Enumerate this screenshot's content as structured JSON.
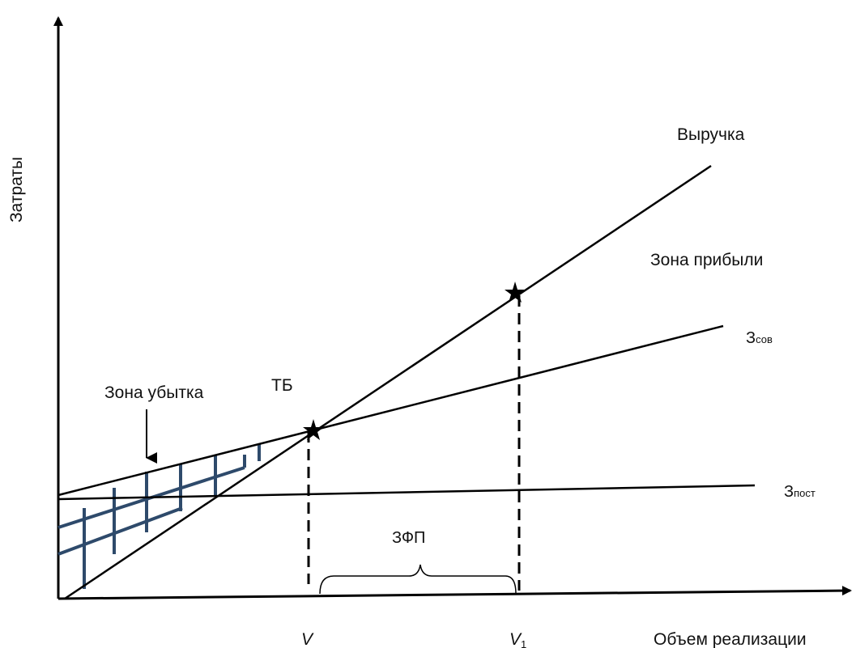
{
  "diagram": {
    "y_axis_label": "Затраты",
    "x_axis_label": "Объем реализации",
    "revenue_label": "Выручка",
    "profit_zone_label": "Зона прибыли",
    "loss_zone_label": "Зона убытка",
    "breakeven_label": "ТБ",
    "total_cost_label": "З",
    "total_cost_sub": "сов",
    "fixed_cost_label": "З",
    "fixed_cost_sub": "пост",
    "safety_zone_label": "ЗФП",
    "v_label": "V",
    "v1_label": "V",
    "v1_sub": "1",
    "colors": {
      "lines": "#000000",
      "hatch": "#2e4a6b"
    }
  }
}
